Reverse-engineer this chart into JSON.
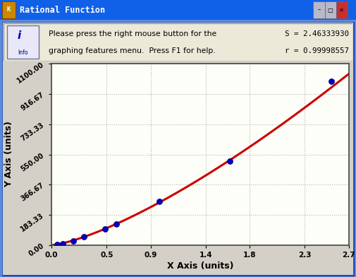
{
  "title": "Rational Function",
  "xlabel": "X Axis (units)",
  "ylabel": "Y Axis (units)",
  "xlim": [
    0.0,
    2.7
  ],
  "ylim": [
    0.0,
    1100.0
  ],
  "xticks": [
    0.0,
    0.5,
    0.9,
    1.4,
    1.8,
    2.3,
    2.7
  ],
  "yticks": [
    0.0,
    183.33,
    366.67,
    550.0,
    733.33,
    916.67,
    1100.0
  ],
  "ytick_labels": [
    "0.00",
    "183.33",
    "366.67",
    "550.00",
    "733.33",
    "916.67",
    "1100.00"
  ],
  "xtick_labels": [
    "0.0",
    "0.5",
    "0.9",
    "1.4",
    "1.8",
    "2.3",
    "2.7"
  ],
  "data_x": [
    0.049,
    0.098,
    0.195,
    0.293,
    0.488,
    0.586,
    0.977,
    1.62,
    2.539
  ],
  "data_y": [
    5.0,
    10.0,
    25.0,
    50.0,
    100.0,
    130.0,
    265.0,
    510.0,
    995.0
  ],
  "dot_color": "#0000CC",
  "dot_edgecolor": "#000080",
  "line_color": "#CC0000",
  "bg_color": "#D4D0C8",
  "plot_bg_color": "#FEFEF8",
  "grid_color": "#AAAAAA",
  "info_text1": "Please press the right mouse button for the",
  "info_text2": "graphing features menu.  Press F1 for help.",
  "window_title": "Rational Function",
  "title_bar_color": "#1060E8",
  "title_text_color": "#FFFFFF",
  "info_box_bg": "#ECE9D8",
  "outer_border_color": "#003CB4",
  "stats_s": "S = 2.46333930",
  "stats_r": "r = 0.99998557"
}
